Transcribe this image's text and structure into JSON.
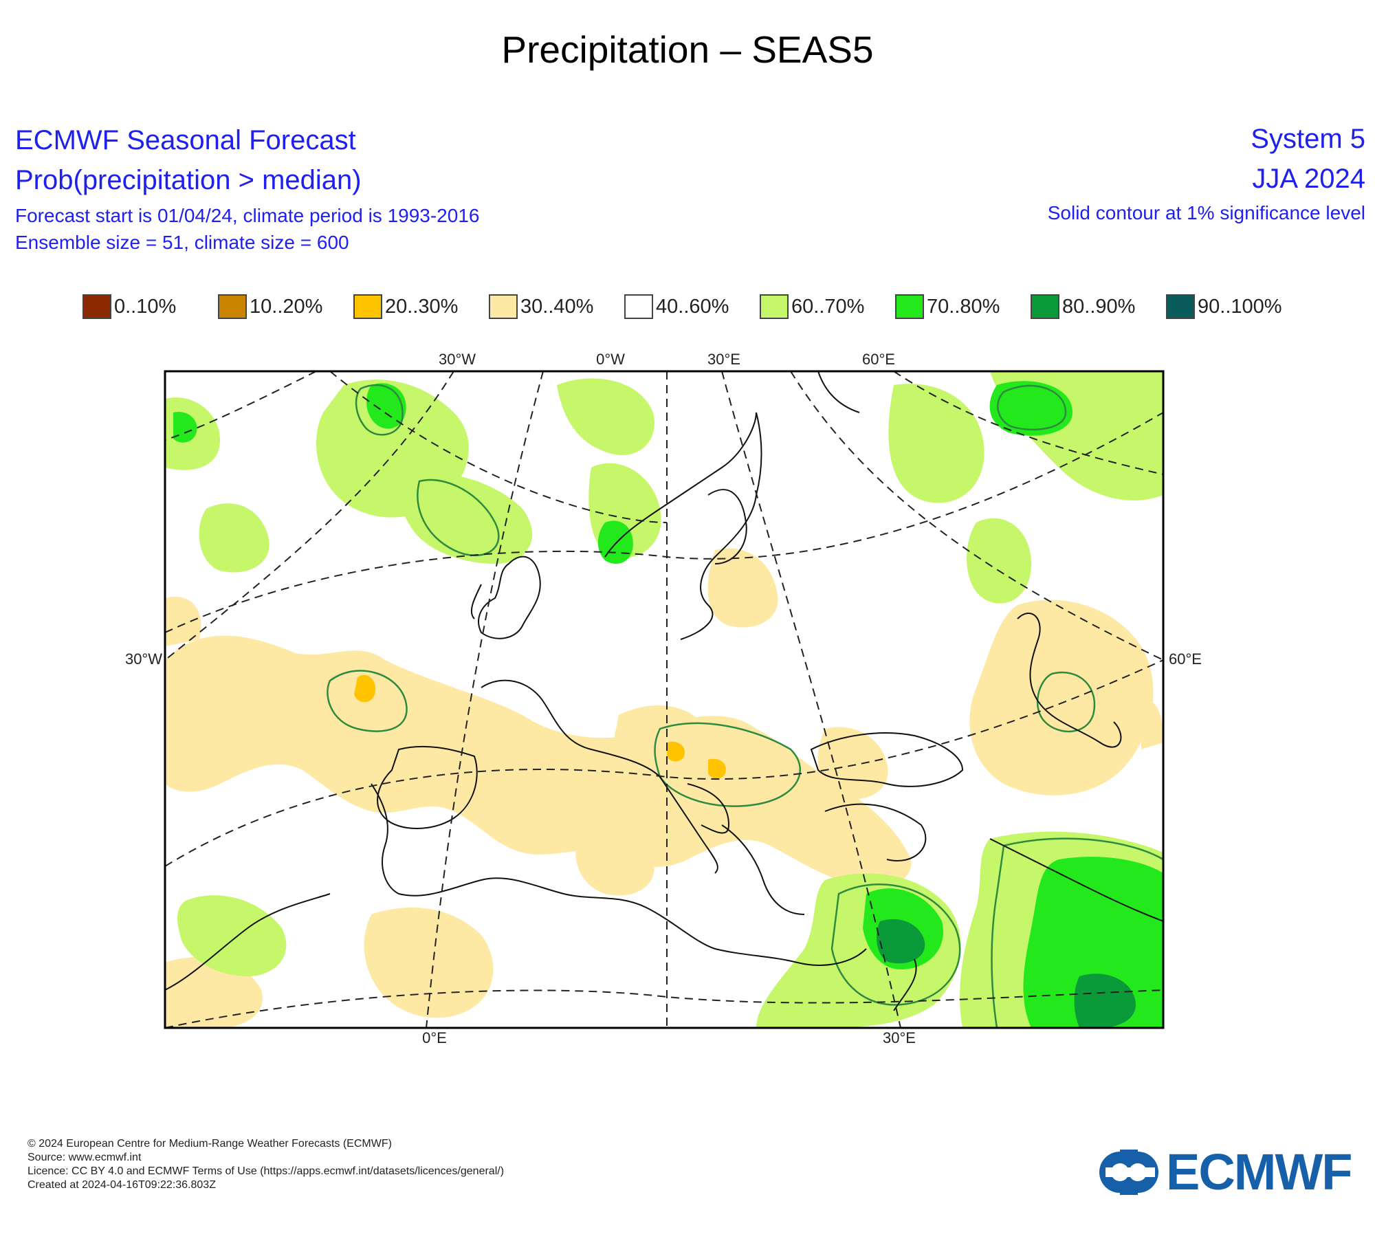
{
  "page": {
    "title": "Precipitation – SEAS5"
  },
  "header": {
    "left": {
      "line1": "ECMWF Seasonal Forecast",
      "line2": "Prob(precipitation > median)",
      "line3": "Forecast start is 01/04/24, climate period is 1993-2016",
      "line4": "Ensemble size = 51, climate size = 600"
    },
    "right": {
      "line1": "System 5",
      "line2": "JJA 2024",
      "line3": "Solid contour at 1% significance level"
    }
  },
  "legend": [
    {
      "label": "0..10%",
      "color": "#8b2a00"
    },
    {
      "label": "10..20%",
      "color": "#c98400"
    },
    {
      "label": "20..30%",
      "color": "#ffc300"
    },
    {
      "label": "30..40%",
      "color": "#fde8a4"
    },
    {
      "label": "40..60%",
      "color": "#ffffff"
    },
    {
      "label": "60..70%",
      "color": "#c6f76a"
    },
    {
      "label": "70..80%",
      "color": "#22e81c"
    },
    {
      "label": "80..90%",
      "color": "#0b9a3a"
    },
    {
      "label": "90..100%",
      "color": "#0a5b5b"
    }
  ],
  "map": {
    "axis_labels": {
      "top": [
        "30°W",
        "0°W",
        "30°E",
        "60°E"
      ],
      "left": "30°W",
      "right": "60°E",
      "bottom": [
        "0°E",
        "30°E"
      ]
    }
  },
  "footer": {
    "line1": "© 2024 European Centre for Medium-Range Weather Forecasts (ECMWF)",
    "line2": "Source: www.ecmwf.int",
    "line3": "Licence: CC BY 4.0 and ECMWF Terms of Use (https://apps.ecmwf.int/datasets/licences/general/)",
    "line4": "Created at 2024-04-16T09:22:36.803Z"
  },
  "logo": {
    "text": "ECMWF",
    "color": "#1560a8"
  }
}
